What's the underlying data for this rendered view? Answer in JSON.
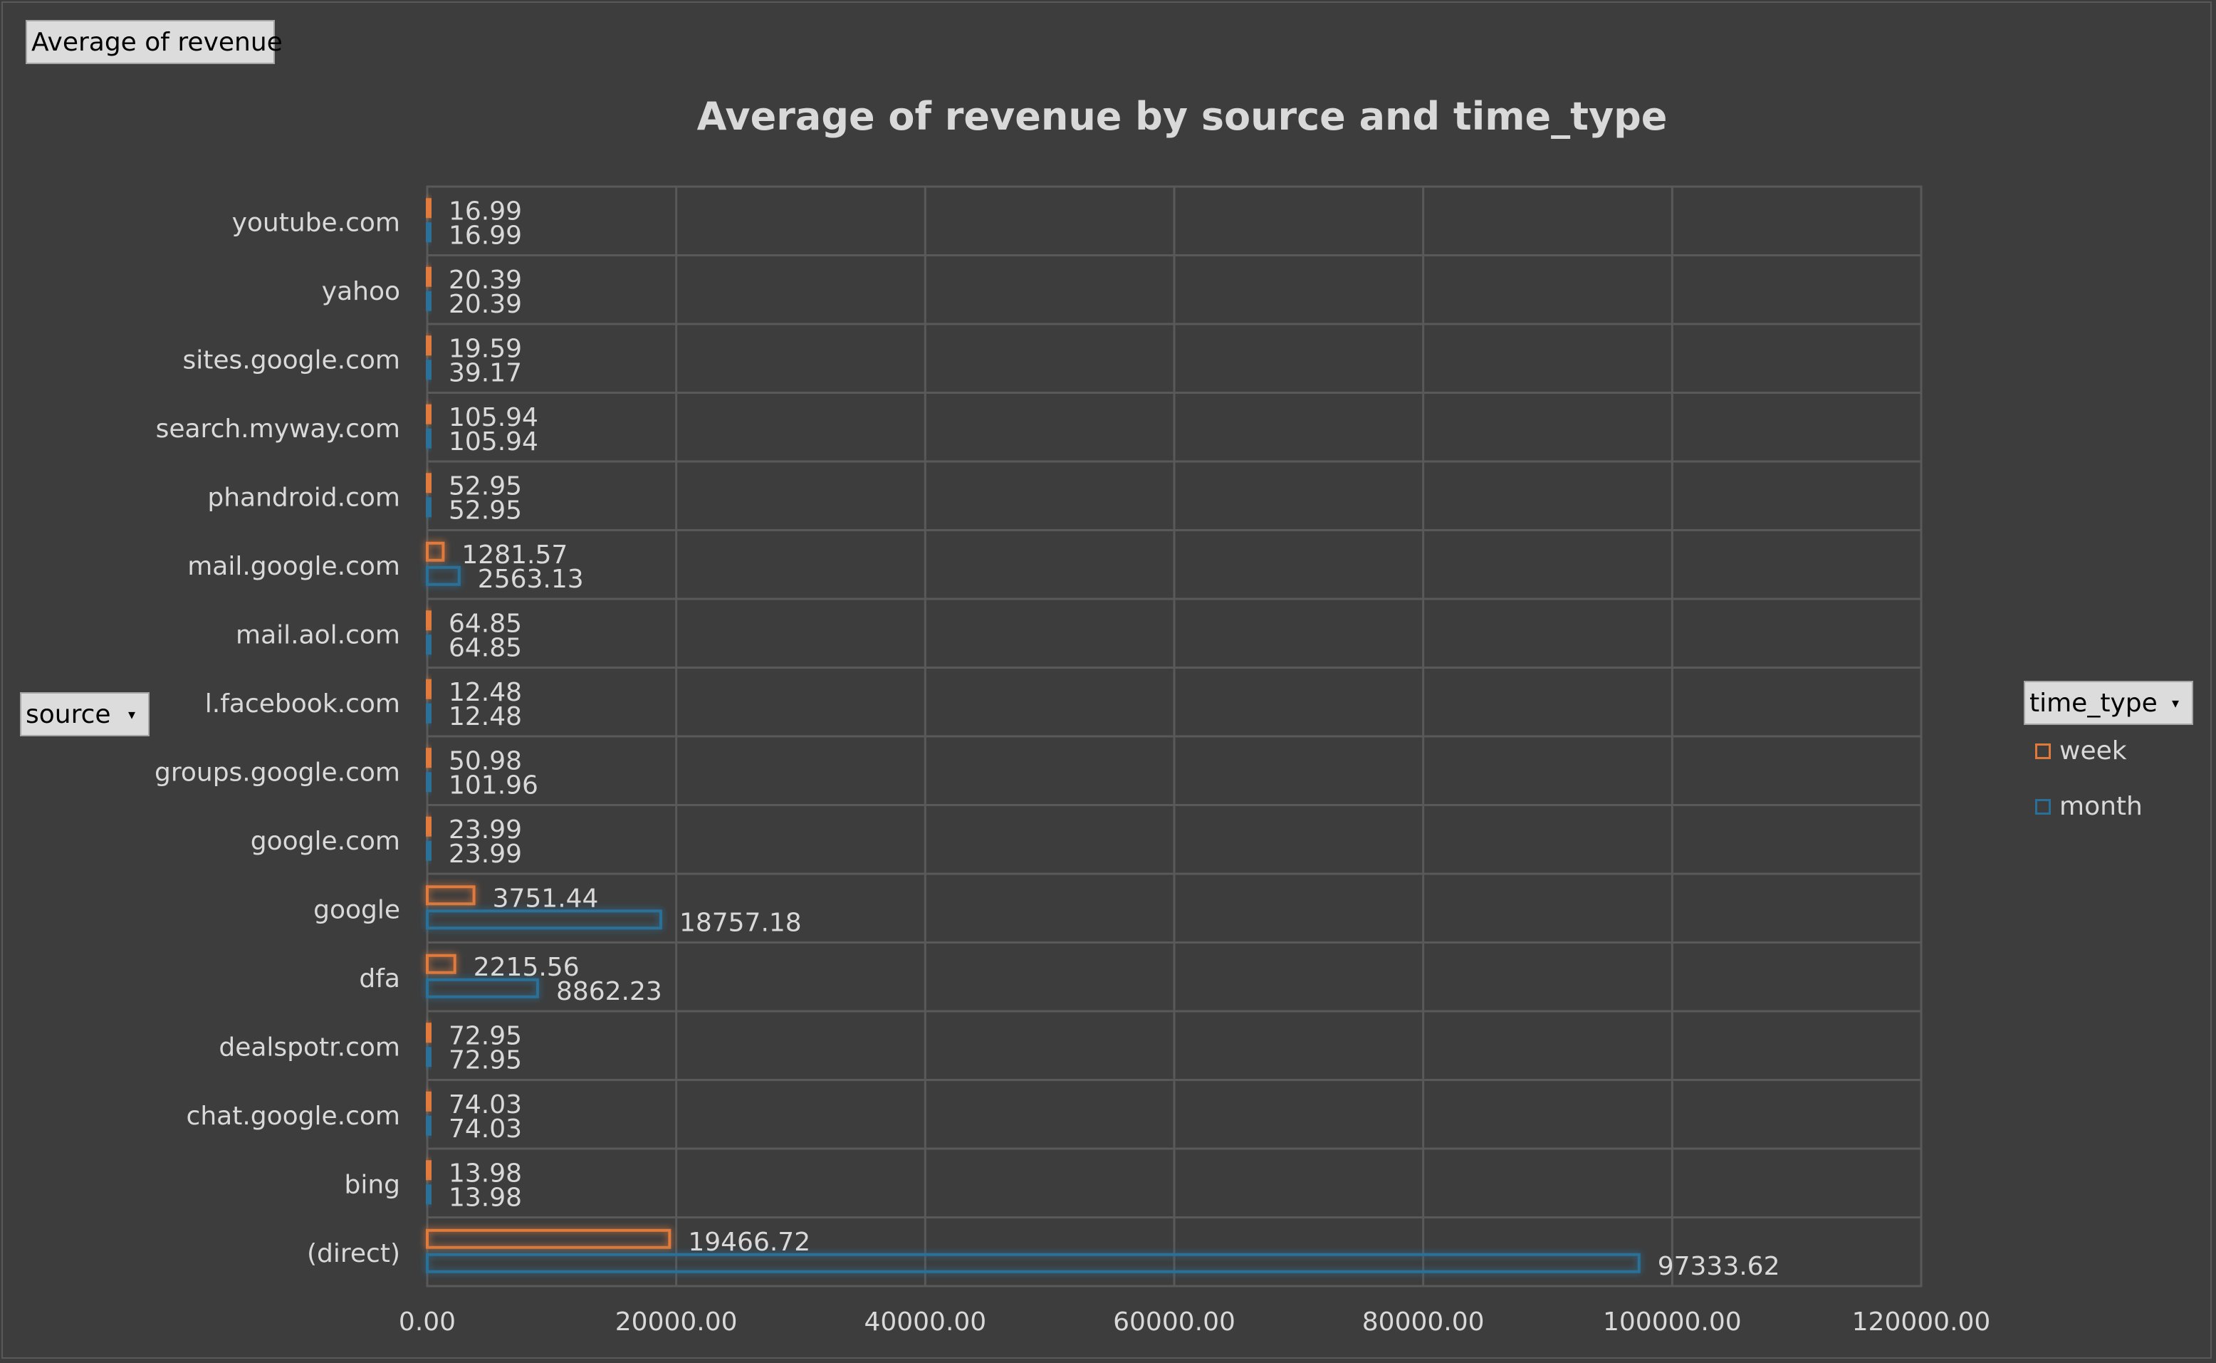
{
  "buttons": {
    "values_field": "Average  of revenue",
    "rows_field": "source",
    "legend_field": "time_type"
  },
  "colors": {
    "week": "#e07a3c",
    "month": "#2a6f97",
    "background": "#3d3d3d",
    "grid": "#595959",
    "text": "#d9d9d9"
  },
  "chart_data": {
    "type": "bar",
    "orientation": "horizontal",
    "title": "Average of revenue by source and time_type",
    "categories": [
      "youtube.com",
      "yahoo",
      "sites.google.com",
      "search.myway.com",
      "phandroid.com",
      "mail.google.com",
      "mail.aol.com",
      "l.facebook.com",
      "groups.google.com",
      "google.com",
      "google",
      "dfa",
      "dealspotr.com",
      "chat.google.com",
      "bing",
      "(direct)"
    ],
    "series": [
      {
        "name": "week",
        "values": [
          16.99,
          20.39,
          19.59,
          105.94,
          52.95,
          1281.57,
          64.85,
          12.48,
          50.98,
          23.99,
          3751.44,
          2215.56,
          72.95,
          74.03,
          13.98,
          19466.72
        ]
      },
      {
        "name": "month",
        "values": [
          16.99,
          20.39,
          39.17,
          105.94,
          52.95,
          2563.13,
          64.85,
          12.48,
          101.96,
          23.99,
          18757.18,
          8862.23,
          72.95,
          74.03,
          13.98,
          97333.62
        ]
      }
    ],
    "data_labels": {
      "week": [
        "16.99",
        "20.39",
        "19.59",
        "105.94",
        "52.95",
        "1281.57",
        "64.85",
        "12.48",
        "50.98",
        "23.99",
        "3751.44",
        "2215.56",
        "72.95",
        "74.03",
        "13.98",
        "19466.72"
      ],
      "month": [
        "16.99",
        "20.39",
        "39.17",
        "105.94",
        "52.95",
        "2563.13",
        "64.85",
        "12.48",
        "101.96",
        "23.99",
        "18757.18",
        "8862.23",
        "72.95",
        "74.03",
        "13.98",
        "97333.62"
      ]
    },
    "xlim": [
      0,
      120000
    ],
    "xticks": [
      "0.00",
      "20000.00",
      "40000.00",
      "60000.00",
      "80000.00",
      "100000.00",
      "120000.00"
    ],
    "grid": true,
    "legend": {
      "position": "right",
      "entries": [
        "week",
        "month"
      ]
    }
  }
}
